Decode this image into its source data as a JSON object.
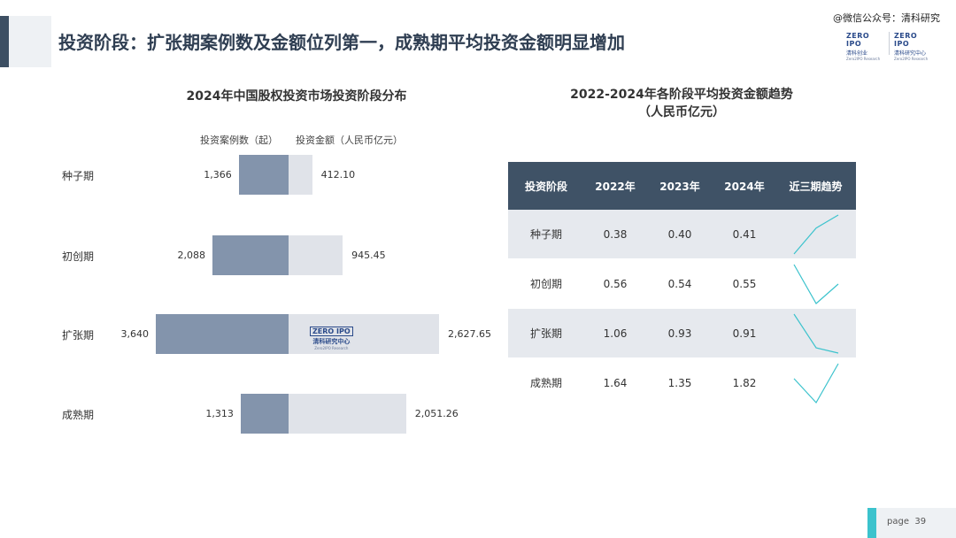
{
  "page": {
    "title": "投资阶段：扩张期案例数及金额位列第一，成熟期平均投资金额明显增加",
    "watermark": "@微信公众号：清科研究",
    "page_label": "page",
    "page_number": "39"
  },
  "logos": {
    "mark": "ZERO IPO",
    "cn": "清科创业",
    "cn2": "清科研究中心",
    "en": "Zero2IPO Research"
  },
  "left_chart": {
    "title": "2024年中国股权投资市场投资阶段分布",
    "legend_count": "投资案例数（起）",
    "legend_amount": "投资金额（人民币亿元）"
  },
  "right_table": {
    "title_line1": "2022-2024年各阶段平均投资金额趋势",
    "title_line2": "（人民币亿元）",
    "headers": [
      "投资阶段",
      "2022年",
      "2023年",
      "2024年",
      "近三期趋势"
    ],
    "rows": [
      [
        "种子期",
        "0.38",
        "0.40",
        "0.41"
      ],
      [
        "初创期",
        "0.56",
        "0.54",
        "0.55"
      ],
      [
        "扩张期",
        "1.06",
        "0.93",
        "0.91"
      ],
      [
        "成熟期",
        "1.64",
        "1.35",
        "1.82"
      ]
    ],
    "trend_color": "#3cc3cd"
  },
  "chart_data": [
    {
      "type": "bar",
      "title": "2024年中国股权投资市场投资阶段分布",
      "categories": [
        "种子期",
        "初创期",
        "扩张期",
        "成熟期"
      ],
      "series": [
        {
          "name": "投资案例数（起）",
          "values": [
            1366,
            2088,
            3640,
            1313
          ],
          "labels": [
            "1,366",
            "2,088",
            "3,640",
            "1,313"
          ],
          "color": "#8394ac"
        },
        {
          "name": "投资金额（人民币亿元）",
          "values": [
            412.1,
            945.45,
            2627.65,
            2051.26
          ],
          "labels": [
            "412.10",
            "945.45",
            "2,627.65",
            "2,051.26"
          ],
          "color": "#e0e3e9"
        }
      ],
      "orientation": "horizontal-butterfly"
    },
    {
      "type": "table",
      "title": "2022-2024年各阶段平均投资金额趋势（人民币亿元）",
      "categories": [
        "2022年",
        "2023年",
        "2024年"
      ],
      "series": [
        {
          "name": "种子期",
          "values": [
            0.38,
            0.4,
            0.41
          ]
        },
        {
          "name": "初创期",
          "values": [
            0.56,
            0.54,
            0.55
          ]
        },
        {
          "name": "扩张期",
          "values": [
            1.06,
            0.93,
            0.91
          ]
        },
        {
          "name": "成熟期",
          "values": [
            1.64,
            1.35,
            1.82
          ]
        }
      ]
    }
  ]
}
